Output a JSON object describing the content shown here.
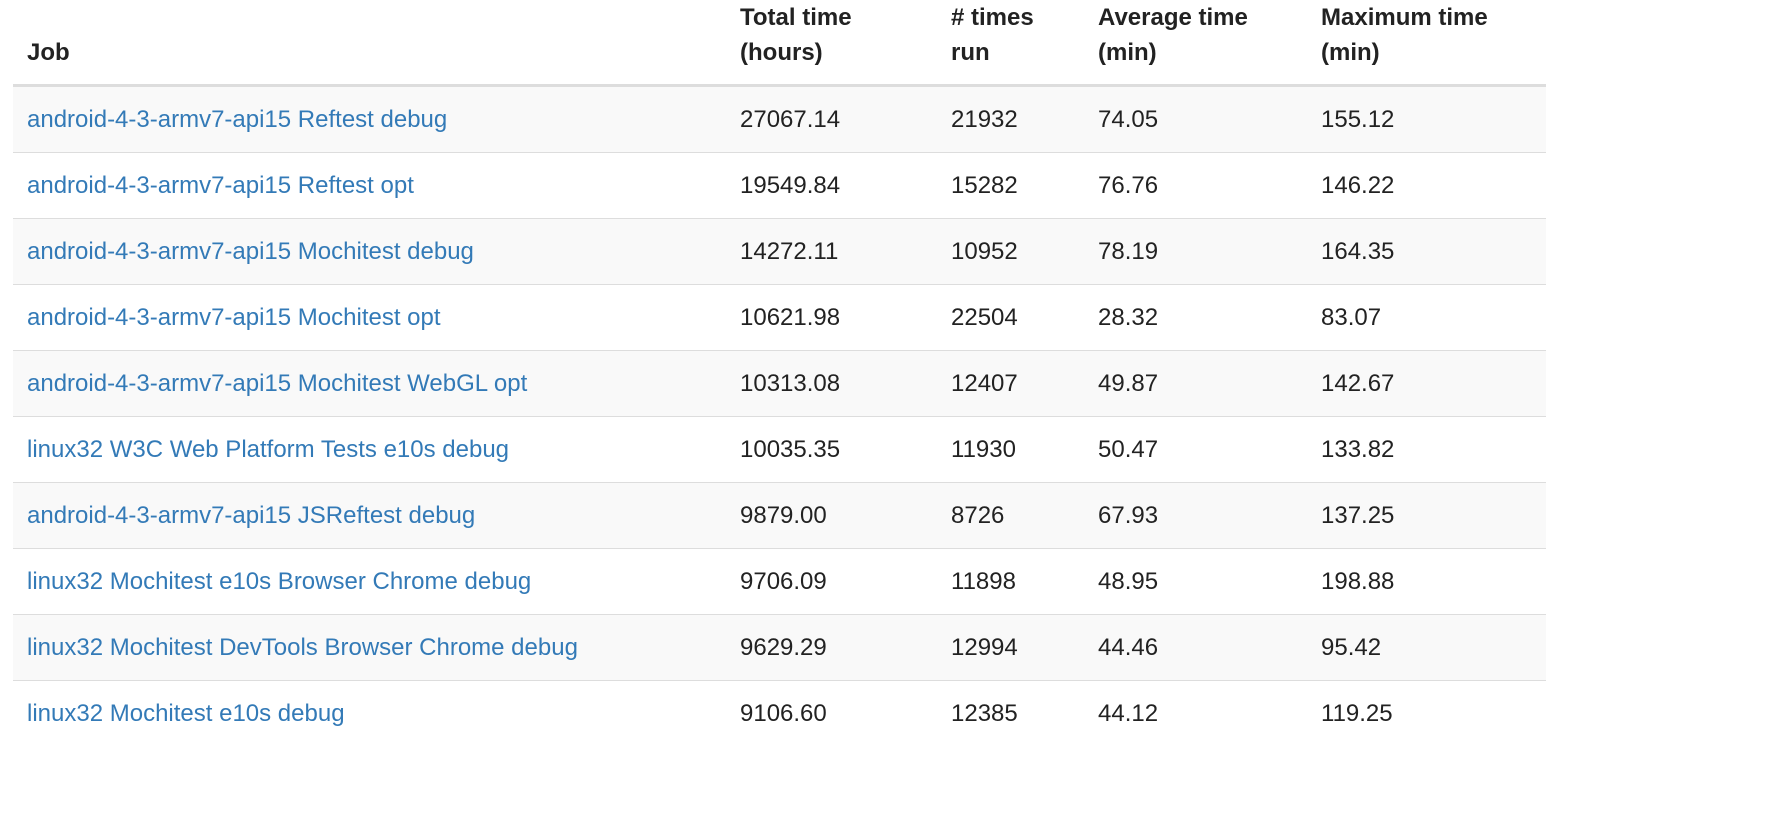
{
  "table": {
    "headers": [
      {
        "line1": "Job",
        "line2": ""
      },
      {
        "line1": "Total time",
        "line2": "(hours)"
      },
      {
        "line1": "# times",
        "line2": "run"
      },
      {
        "line1": "Average time",
        "line2": "(min)"
      },
      {
        "line1": "Maximum time",
        "line2": "(min)"
      }
    ],
    "rows": [
      {
        "job": "android-4-3-armv7-api15 Reftest debug",
        "total": "27067.14",
        "runs": "21932",
        "avg": "74.05",
        "max": "155.12"
      },
      {
        "job": "android-4-3-armv7-api15 Reftest opt",
        "total": "19549.84",
        "runs": "15282",
        "avg": "76.76",
        "max": "146.22"
      },
      {
        "job": "android-4-3-armv7-api15 Mochitest debug",
        "total": "14272.11",
        "runs": "10952",
        "avg": "78.19",
        "max": "164.35"
      },
      {
        "job": "android-4-3-armv7-api15 Mochitest opt",
        "total": "10621.98",
        "runs": "22504",
        "avg": "28.32",
        "max": "83.07"
      },
      {
        "job": "android-4-3-armv7-api15 Mochitest WebGL opt",
        "total": "10313.08",
        "runs": "12407",
        "avg": "49.87",
        "max": "142.67"
      },
      {
        "job": "linux32 W3C Web Platform Tests e10s debug",
        "total": "10035.35",
        "runs": "11930",
        "avg": "50.47",
        "max": "133.82"
      },
      {
        "job": "android-4-3-armv7-api15 JSReftest debug",
        "total": "9879.00",
        "runs": "8726",
        "avg": "67.93",
        "max": "137.25"
      },
      {
        "job": "linux32 Mochitest e10s Browser Chrome debug",
        "total": "9706.09",
        "runs": "11898",
        "avg": "48.95",
        "max": "198.88"
      },
      {
        "job": "linux32 Mochitest DevTools Browser Chrome debug",
        "total": "9629.29",
        "runs": "12994",
        "avg": "44.46",
        "max": "95.42"
      },
      {
        "job": "linux32 Mochitest e10s debug",
        "total": "9106.60",
        "runs": "12385",
        "avg": "44.12",
        "max": "119.25"
      }
    ]
  },
  "colors": {
    "link": "#337ab7",
    "text": "#222222",
    "stripe": "#f9f9f9",
    "border": "#dddddd"
  }
}
